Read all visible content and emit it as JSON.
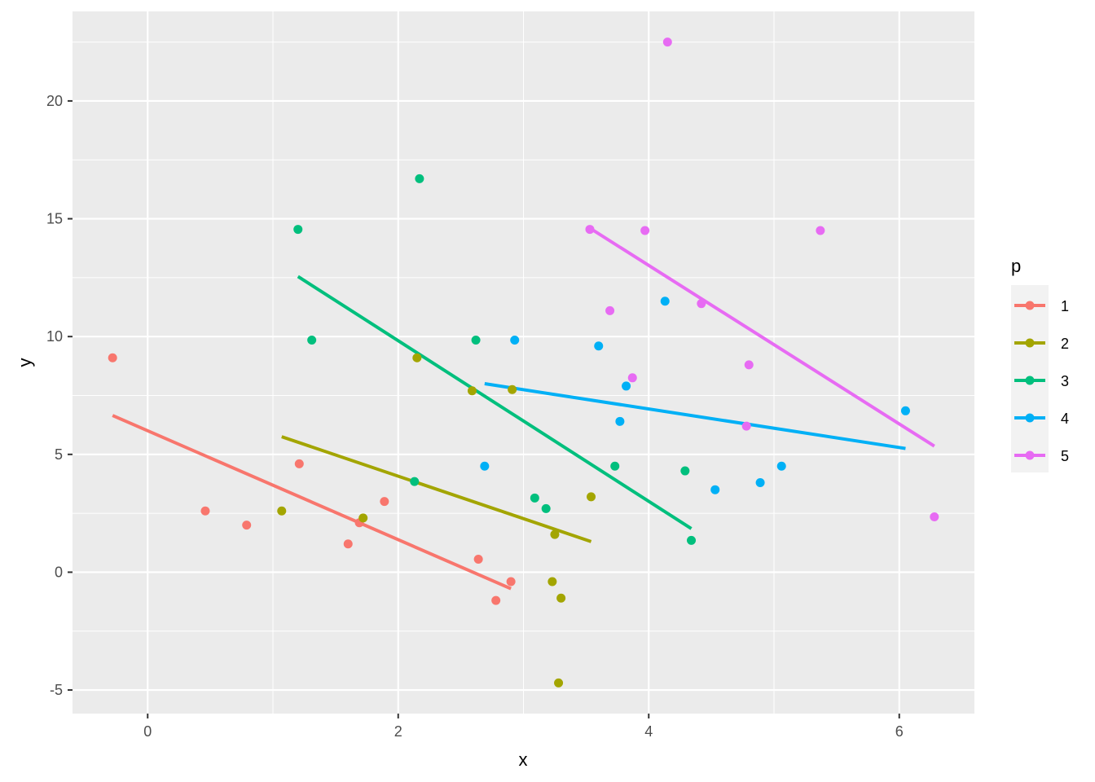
{
  "chart_data": {
    "type": "scatter",
    "xlabel": "x",
    "ylabel": "y",
    "xlim": [
      -0.6,
      6.6
    ],
    "ylim": [
      -6.0,
      23.8
    ],
    "xticks": [
      0,
      2,
      4,
      6
    ],
    "yticks": [
      -5,
      0,
      5,
      10,
      15,
      20
    ],
    "grid": true,
    "legend": {
      "title": "p",
      "position": "right"
    },
    "series": [
      {
        "name": "1",
        "color": "#F8766D",
        "points": [
          [
            -0.28,
            9.1
          ],
          [
            0.46,
            2.6
          ],
          [
            0.79,
            2.0
          ],
          [
            1.21,
            4.6
          ],
          [
            1.6,
            1.2
          ],
          [
            1.69,
            2.1
          ],
          [
            1.89,
            3.0
          ],
          [
            2.64,
            0.55
          ],
          [
            2.78,
            -1.2
          ],
          [
            2.9,
            -0.4
          ]
        ],
        "fit": [
          [
            -0.28,
            6.65
          ],
          [
            2.9,
            -0.7
          ]
        ]
      },
      {
        "name": "2",
        "color": "#A3A500",
        "points": [
          [
            1.07,
            2.6
          ],
          [
            1.72,
            2.3
          ],
          [
            2.15,
            9.1
          ],
          [
            2.59,
            7.7
          ],
          [
            2.91,
            7.75
          ],
          [
            3.23,
            -0.4
          ],
          [
            3.25,
            1.6
          ],
          [
            3.28,
            -4.7
          ],
          [
            3.3,
            -1.1
          ],
          [
            3.54,
            3.2
          ]
        ],
        "fit": [
          [
            1.07,
            5.75
          ],
          [
            3.54,
            1.3
          ]
        ]
      },
      {
        "name": "3",
        "color": "#00BF7D",
        "points": [
          [
            1.2,
            14.55
          ],
          [
            1.31,
            9.85
          ],
          [
            2.13,
            3.85
          ],
          [
            2.17,
            16.7
          ],
          [
            2.62,
            9.85
          ],
          [
            3.09,
            3.15
          ],
          [
            3.18,
            2.7
          ],
          [
            3.73,
            4.5
          ],
          [
            4.29,
            4.3
          ],
          [
            4.34,
            1.35
          ]
        ],
        "fit": [
          [
            1.2,
            12.55
          ],
          [
            4.34,
            1.85
          ]
        ]
      },
      {
        "name": "4",
        "color": "#00B0F6",
        "points": [
          [
            2.69,
            4.5
          ],
          [
            2.93,
            9.85
          ],
          [
            3.6,
            9.6
          ],
          [
            3.77,
            6.4
          ],
          [
            3.82,
            7.9
          ],
          [
            4.13,
            11.5
          ],
          [
            4.53,
            3.5
          ],
          [
            4.89,
            3.8
          ],
          [
            5.06,
            4.5
          ],
          [
            6.05,
            6.85
          ]
        ],
        "fit": [
          [
            2.69,
            8.0
          ],
          [
            6.05,
            5.25
          ]
        ]
      },
      {
        "name": "5",
        "color": "#E76BF3",
        "points": [
          [
            3.53,
            14.55
          ],
          [
            3.69,
            11.1
          ],
          [
            3.87,
            8.25
          ],
          [
            3.97,
            14.5
          ],
          [
            4.15,
            22.5
          ],
          [
            4.42,
            11.4
          ],
          [
            4.78,
            6.2
          ],
          [
            4.8,
            8.8
          ],
          [
            5.37,
            14.5
          ],
          [
            6.28,
            2.35
          ]
        ],
        "fit": [
          [
            3.53,
            14.6
          ],
          [
            6.28,
            5.35
          ]
        ]
      }
    ]
  }
}
